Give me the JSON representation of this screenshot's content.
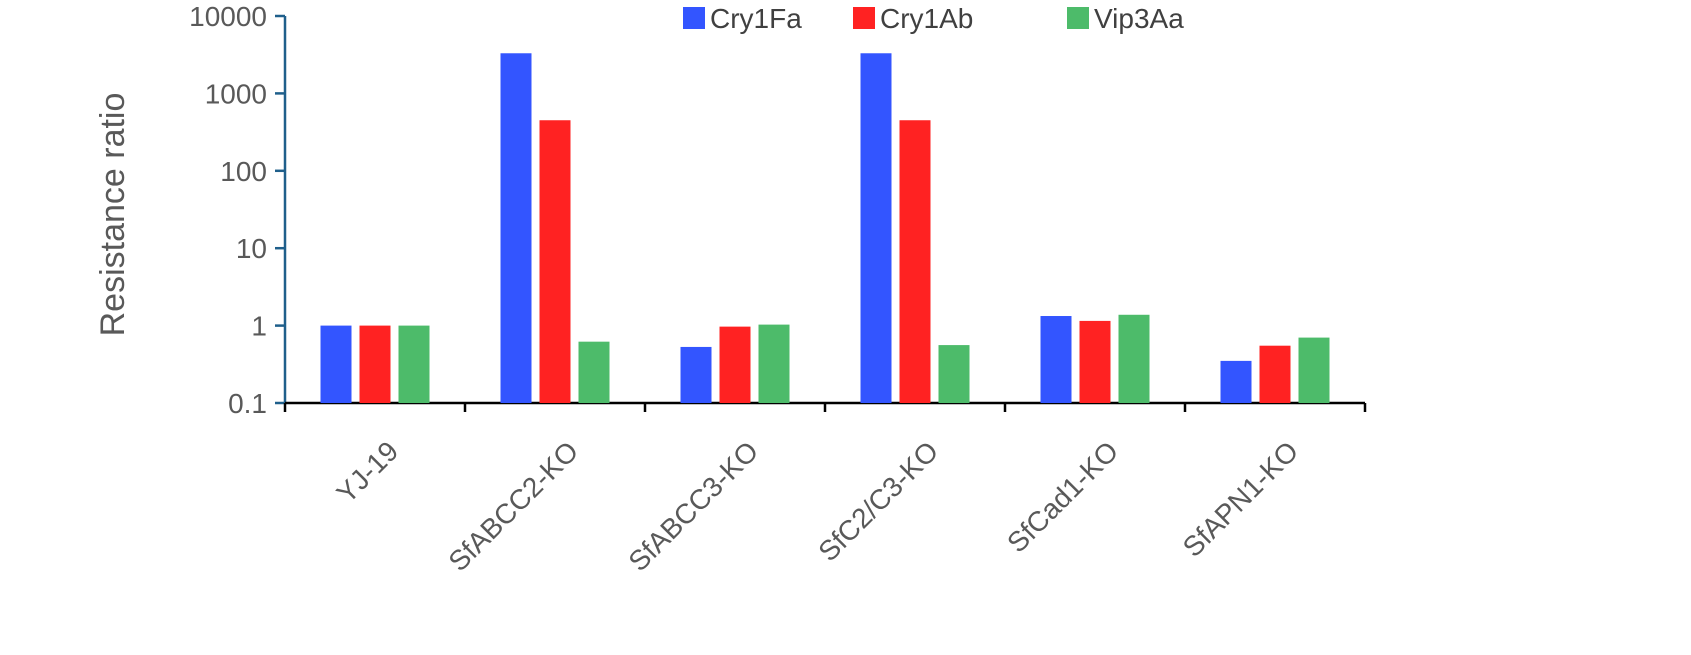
{
  "chart_data": {
    "type": "bar",
    "ylabel": "Resistance ratio",
    "yscale": "log",
    "ylim": [
      0.1,
      10000
    ],
    "yticks": [
      "0.1",
      "1",
      "10",
      "100",
      "1000",
      "10000"
    ],
    "categories": [
      "YJ-19",
      "SfABCC2-KO",
      "SfABCC3-KO",
      "SfC2/C3-KO",
      "SfCad1-KO",
      "SfAPN1-KO"
    ],
    "series": [
      {
        "name": "Cry1Fa",
        "color": "#3355ff",
        "values": [
          1,
          3300,
          0.53,
          3300,
          1.33,
          0.35
        ]
      },
      {
        "name": "Cry1Ab",
        "color": "#ff2222",
        "values": [
          1,
          450,
          0.97,
          450,
          1.15,
          0.55
        ]
      },
      {
        "name": "Vip3Aa",
        "color": "#4dbb6a",
        "values": [
          1,
          0.62,
          1.03,
          0.56,
          1.38,
          0.7
        ]
      }
    ],
    "legend_position": "top-right",
    "grid": false
  }
}
